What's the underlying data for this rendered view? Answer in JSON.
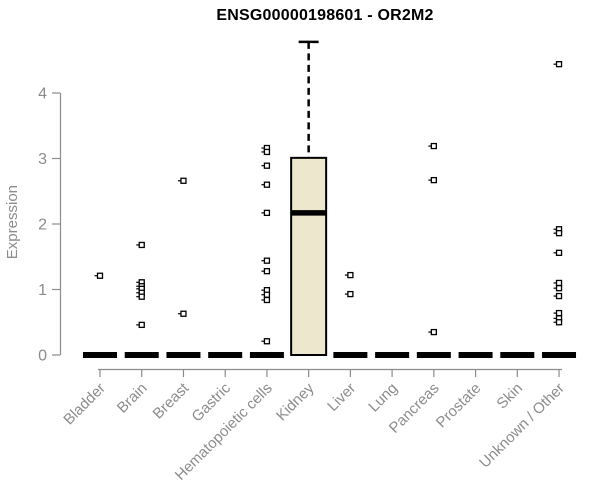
{
  "chart_data": {
    "type": "boxplot",
    "title": "ENSG00000198601 - OR2M2",
    "ylabel": "Expression",
    "xlabel": "",
    "yticks": [
      0,
      1,
      2,
      3,
      4
    ],
    "ylim": [
      0,
      4.9
    ],
    "grid": false,
    "legend": false,
    "colors": {
      "box_fill": "#ece7cd",
      "box_stroke": "#000000",
      "median": "#000000",
      "zero_bar": "#000000",
      "outlier_stroke": "#000000",
      "outlier_fill": "#ffffff",
      "axis": "#8c8c8c",
      "tick_label": "#8c8c8c",
      "title": "#000000",
      "background": "#ffffff"
    },
    "categories": [
      "Bladder",
      "Brain",
      "Breast",
      "Gastric",
      "Hematopoietic cells",
      "Kidney",
      "Liver",
      "Lung",
      "Pancreas",
      "Prostate",
      "Skin",
      "Unknown / Other"
    ],
    "boxes": [
      {
        "category": "Bladder",
        "whisker_low": 0,
        "q1": 0,
        "median": 0,
        "q3": 0,
        "whisker_high": 0
      },
      {
        "category": "Brain",
        "whisker_low": 0,
        "q1": 0,
        "median": 0,
        "q3": 0,
        "whisker_high": 0
      },
      {
        "category": "Breast",
        "whisker_low": 0,
        "q1": 0,
        "median": 0,
        "q3": 0,
        "whisker_high": 0
      },
      {
        "category": "Gastric",
        "whisker_low": 0,
        "q1": 0,
        "median": 0,
        "q3": 0,
        "whisker_high": 0
      },
      {
        "category": "Hematopoietic cells",
        "whisker_low": 0,
        "q1": 0,
        "median": 0,
        "q3": 0,
        "whisker_high": 0
      },
      {
        "category": "Kidney",
        "whisker_low": 0,
        "q1": 0,
        "median": 2.17,
        "q3": 3.01,
        "whisker_high": 4.78
      },
      {
        "category": "Liver",
        "whisker_low": 0,
        "q1": 0,
        "median": 0,
        "q3": 0,
        "whisker_high": 0
      },
      {
        "category": "Lung",
        "whisker_low": 0,
        "q1": 0,
        "median": 0,
        "q3": 0,
        "whisker_high": 0
      },
      {
        "category": "Pancreas",
        "whisker_low": 0,
        "q1": 0,
        "median": 0,
        "q3": 0,
        "whisker_high": 0
      },
      {
        "category": "Prostate",
        "whisker_low": 0,
        "q1": 0,
        "median": 0,
        "q3": 0,
        "whisker_high": 0
      },
      {
        "category": "Skin",
        "whisker_low": 0,
        "q1": 0,
        "median": 0,
        "q3": 0,
        "whisker_high": 0
      },
      {
        "category": "Unknown / Other",
        "whisker_low": 0,
        "q1": 0,
        "median": 0,
        "q3": 0,
        "whisker_high": 0
      }
    ],
    "outliers": [
      [
        1.21
      ],
      [
        1.68,
        1.11,
        1.05,
        1.01,
        0.95,
        0.89,
        0.46
      ],
      [
        2.66,
        0.63
      ],
      [],
      [
        3.16,
        3.1,
        2.89,
        2.6,
        2.17,
        1.44,
        1.28,
        0.99,
        0.92,
        0.84,
        0.21
      ],
      [],
      [
        1.22,
        0.93
      ],
      [],
      [
        3.19,
        2.67,
        0.35
      ],
      [],
      [],
      [
        4.44,
        1.92,
        1.86,
        1.56,
        1.1,
        1.02,
        0.9,
        0.64,
        0.56,
        0.5
      ]
    ]
  }
}
